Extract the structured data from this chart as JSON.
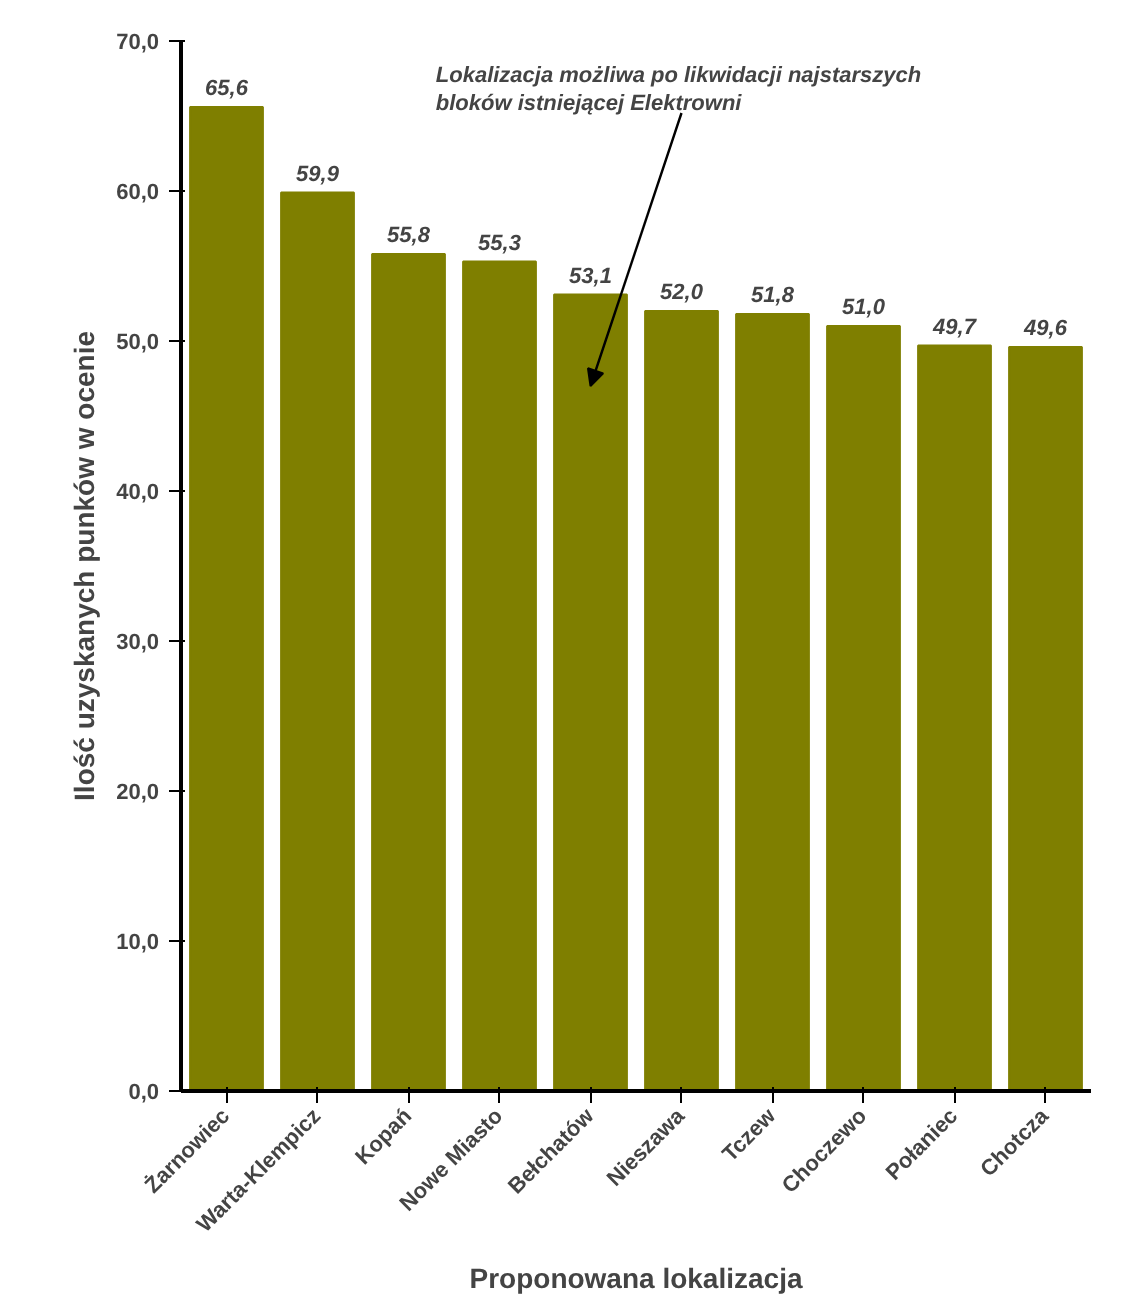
{
  "chart_data": {
    "type": "bar",
    "xlabel": "Proponowana lokalizacja",
    "ylabel": "Ilość uzyskanych punków w ocenie",
    "categories": [
      "Żarnowiec",
      "Warta-Klempicz",
      "Kopań",
      "Nowe Miasto",
      "Bełchatów",
      "Nieszawa",
      "Tczew",
      "Choczewo",
      "Połaniec",
      "Chotcza"
    ],
    "values": [
      65.6,
      59.9,
      55.8,
      55.3,
      53.1,
      52.0,
      51.8,
      51.0,
      49.7,
      49.6
    ],
    "value_labels": [
      "65,6",
      "59,9",
      "55,8",
      "55,3",
      "53,1",
      "52,0",
      "51,8",
      "51,0",
      "49,7",
      "49,6"
    ],
    "color": "#7f7f00",
    "ylim": [
      0,
      70
    ],
    "yticks": [
      {
        "value": 0,
        "label": "0,0"
      },
      {
        "value": 10,
        "label": "10,0"
      },
      {
        "value": 20,
        "label": "20,0"
      },
      {
        "value": 30,
        "label": "30,0"
      },
      {
        "value": 40,
        "label": "40,0"
      },
      {
        "value": 50,
        "label": "50,0"
      },
      {
        "value": 60,
        "label": "60,0"
      },
      {
        "value": 70,
        "label": "70,0"
      }
    ],
    "annotations": [
      "Lokalizacja możliwa po likwidacji najstarszych\nbloków istniejącej Elektrowni"
    ],
    "grid": false
  }
}
